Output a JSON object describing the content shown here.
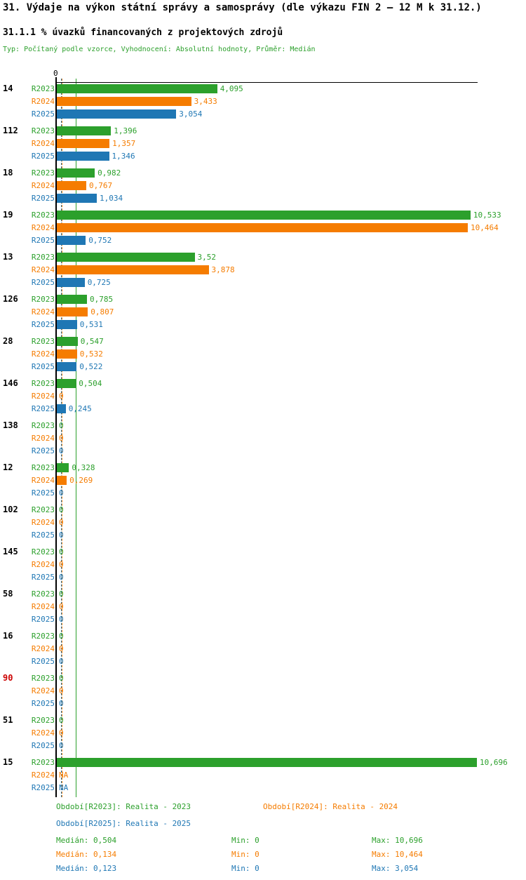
{
  "title": "31. Výdaje na výkon státní správy a samosprávy (dle výkazu FIN 2 – 12 M k 31.12.)",
  "subtitle": "31.1.1 % úvazků financovaných z projektových zdrojů",
  "meta": "Typ: Počítaný podle vzorce, Vyhodnocení: Absolutní hodnoty, Průměr: Medián",
  "colors": {
    "r2023": "#2ca02c",
    "r2024": "#f57c00",
    "r2025": "#1f77b4",
    "highlight": "#cc0000",
    "axis": "#000000"
  },
  "axis": {
    "zero_label": "0"
  },
  "chart_data": {
    "type": "bar",
    "orientation": "horizontal",
    "axis_max": 10.696,
    "xlim": [
      0,
      10.696
    ],
    "series_labels": [
      "R2023",
      "R2024",
      "R2025"
    ],
    "medians": [
      0.504,
      0.134,
      0.123
    ],
    "groups": [
      {
        "label": "14",
        "values": [
          4.095,
          3.433,
          3.054
        ],
        "display": [
          "4,095",
          "3,433",
          "3,054"
        ]
      },
      {
        "label": "112",
        "values": [
          1.396,
          1.357,
          1.346
        ],
        "display": [
          "1,396",
          "1,357",
          "1,346"
        ]
      },
      {
        "label": "18",
        "values": [
          0.982,
          0.767,
          1.034
        ],
        "display": [
          "0,982",
          "0,767",
          "1,034"
        ]
      },
      {
        "label": "19",
        "values": [
          10.533,
          10.464,
          0.752
        ],
        "display": [
          "10,533",
          "10,464",
          "0,752"
        ]
      },
      {
        "label": "13",
        "values": [
          3.52,
          3.878,
          0.725
        ],
        "display": [
          "3,52",
          "3,878",
          "0,725"
        ]
      },
      {
        "label": "126",
        "values": [
          0.785,
          0.807,
          0.531
        ],
        "display": [
          "0,785",
          "0,807",
          "0,531"
        ]
      },
      {
        "label": "28",
        "values": [
          0.547,
          0.532,
          0.522
        ],
        "display": [
          "0,547",
          "0,532",
          "0,522"
        ]
      },
      {
        "label": "146",
        "values": [
          0.504,
          0,
          0.245
        ],
        "display": [
          "0,504",
          "0",
          "0,245"
        ]
      },
      {
        "label": "138",
        "values": [
          0,
          0,
          0
        ],
        "display": [
          "0",
          "0",
          "0"
        ]
      },
      {
        "label": "12",
        "values": [
          0.328,
          0.269,
          0
        ],
        "display": [
          "0,328",
          "0,269",
          "0"
        ]
      },
      {
        "label": "102",
        "values": [
          0,
          0,
          0
        ],
        "display": [
          "0",
          "0",
          "0"
        ]
      },
      {
        "label": "145",
        "values": [
          0,
          0,
          0
        ],
        "display": [
          "0",
          "0",
          "0"
        ]
      },
      {
        "label": "58",
        "values": [
          0,
          0,
          0
        ],
        "display": [
          "0",
          "0",
          "0"
        ]
      },
      {
        "label": "16",
        "values": [
          0,
          0,
          0
        ],
        "display": [
          "0",
          "0",
          "0"
        ]
      },
      {
        "label": "90",
        "highlight": true,
        "values": [
          0,
          0,
          0
        ],
        "display": [
          "0",
          "0",
          "0"
        ]
      },
      {
        "label": "51",
        "values": [
          0,
          0,
          0
        ],
        "display": [
          "0",
          "0",
          "0"
        ]
      },
      {
        "label": "15",
        "values": [
          10.696,
          null,
          null
        ],
        "display": [
          "10,696",
          "NA",
          "NA"
        ]
      }
    ]
  },
  "legend": {
    "r2023": "Období[R2023]: Realita - 2023",
    "r2024": "Období[R2024]: Realita - 2024",
    "r2025": "Období[R2025]: Realita - 2025"
  },
  "stats": [
    {
      "median": "Medián: 0,504",
      "min": "Min: 0",
      "max": "Max: 10,696"
    },
    {
      "median": "Medián: 0,134",
      "min": "Min: 0",
      "max": "Max: 10,464"
    },
    {
      "median": "Medián: 0,123",
      "min": "Min: 0",
      "max": "Max: 3,054"
    }
  ]
}
